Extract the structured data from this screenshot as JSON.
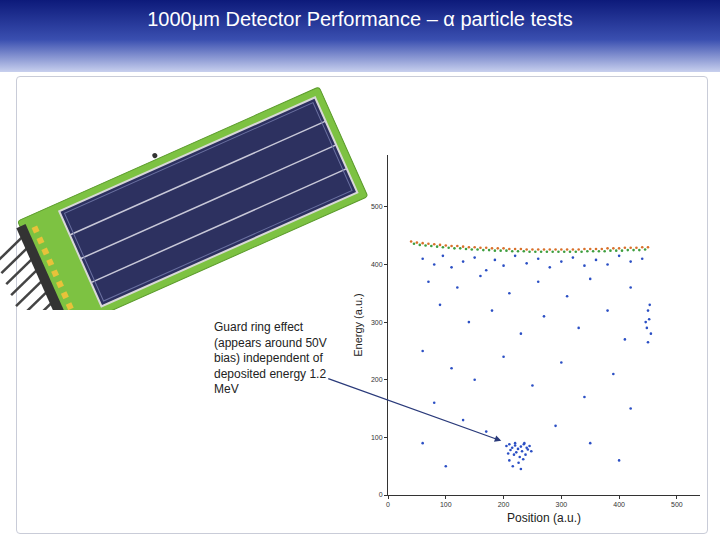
{
  "header": {
    "title": "1000μm Detector Performance – α particle tests"
  },
  "chart_data": {
    "type": "scatter",
    "x_label": "Position (a.u.)",
    "y_label": "Energy (a.u.)",
    "xlim": [
      0,
      540
    ],
    "xticks": [
      0,
      100,
      200,
      300,
      400,
      500
    ],
    "ylim": [
      0,
      590
    ],
    "yticks": [
      0,
      100,
      200,
      300,
      400,
      500
    ],
    "grid": false,
    "marker": "circle",
    "series": [
      {
        "color": "#d9702a",
        "x": [
          40,
          50,
          60,
          70,
          80,
          90,
          100,
          110,
          120,
          130,
          140,
          150,
          160,
          170,
          180,
          190,
          200,
          210,
          220,
          230,
          240,
          250,
          260,
          270,
          280,
          290,
          300,
          310,
          320,
          330,
          340,
          350,
          360,
          370,
          380,
          390,
          400,
          410,
          420,
          430,
          440,
          450
        ],
        "values": [
          440,
          438,
          437,
          436,
          435,
          434,
          433,
          432,
          432,
          431,
          430,
          430,
          429,
          429,
          428,
          428,
          428,
          427,
          427,
          427,
          426,
          426,
          426,
          426,
          426,
          426,
          426,
          426,
          426,
          426,
          427,
          427,
          427,
          427,
          428,
          428,
          428,
          429,
          429,
          429,
          430,
          430
        ]
      },
      {
        "color": "#3f9e3f",
        "x": [
          45,
          55,
          65,
          75,
          85,
          95,
          105,
          115,
          125,
          135,
          145,
          155,
          165,
          175,
          185,
          195,
          205,
          215,
          225,
          235,
          245,
          255,
          265,
          275,
          285,
          295,
          305,
          315,
          325,
          335,
          345,
          355,
          365,
          375,
          385,
          395,
          405,
          415,
          425,
          435,
          445
        ],
        "values": [
          436,
          434,
          433,
          432,
          431,
          430,
          429,
          428,
          428,
          427,
          426,
          426,
          425,
          425,
          424,
          424,
          424,
          423,
          423,
          423,
          422,
          422,
          422,
          422,
          422,
          422,
          422,
          422,
          422,
          422,
          423,
          423,
          423,
          423,
          424,
          424,
          424,
          425,
          425,
          425,
          426
        ]
      },
      {
        "color": "#2b4fc4",
        "x": [
          60,
          80,
          95,
          110,
          130,
          150,
          170,
          185,
          200,
          220,
          240,
          260,
          280,
          300,
          320,
          340,
          360,
          380,
          400,
          420,
          440,
          70,
          120,
          160,
          210,
          260,
          310,
          350,
          420,
          90,
          140,
          180,
          230,
          270,
          330,
          380,
          410,
          60,
          110,
          150,
          200,
          250,
          300,
          340,
          390,
          420,
          80,
          130,
          170,
          290,
          350,
          400,
          100,
          60,
          450,
          452,
          448,
          455,
          450,
          453,
          446,
          205,
          210,
          215,
          220,
          225,
          230,
          235,
          240,
          245,
          212,
          222,
          232,
          242,
          218,
          228,
          238,
          210,
          226,
          234,
          216,
          230,
          220,
          236,
          248,
          208
        ],
        "values": [
          410,
          400,
          415,
          395,
          405,
          412,
          390,
          408,
          398,
          415,
          402,
          410,
          395,
          405,
          412,
          398,
          408,
          400,
          415,
          405,
          410,
          370,
          360,
          380,
          350,
          370,
          345,
          375,
          360,
          330,
          300,
          320,
          280,
          310,
          290,
          320,
          270,
          250,
          220,
          200,
          240,
          190,
          230,
          170,
          210,
          150,
          160,
          130,
          110,
          120,
          90,
          60,
          50,
          90,
          320,
          305,
          290,
          280,
          265,
          330,
          300,
          85,
          88,
          82,
          86,
          80,
          84,
          88,
          82,
          85,
          78,
          74,
          76,
          79,
          70,
          66,
          70,
          60,
          56,
          62,
          50,
          45,
          90,
          90,
          76,
          72
        ]
      }
    ],
    "annotations": [
      {
        "text": "Guard ring effect (appears around 50V bias) independent of deposited energy 1.2 MeV",
        "x": 196,
        "y": 94
      }
    ]
  }
}
